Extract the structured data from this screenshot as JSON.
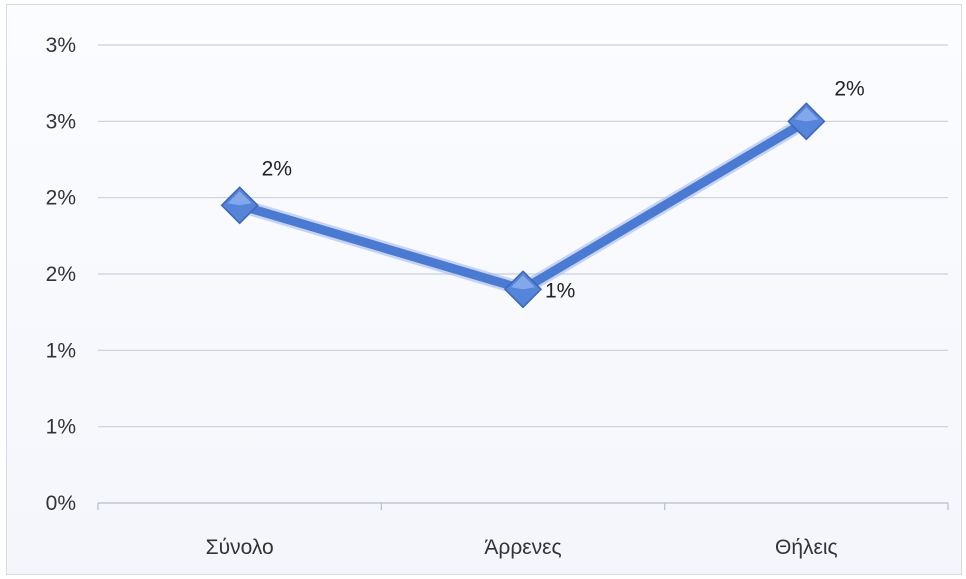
{
  "chart_data": {
    "type": "line",
    "title": "",
    "xlabel": "",
    "ylabel": "",
    "categories": [
      "Σύνολο",
      "Άρρενες",
      "Θήλεις"
    ],
    "series": [
      {
        "values": [
          1.95,
          1.4,
          2.5
        ],
        "data_labels": [
          "2%",
          "1%",
          "2%"
        ],
        "color": "#4a7bd4"
      }
    ],
    "ylim": [
      0,
      3.0
    ],
    "y_tick_labels": [
      "0%",
      "1%",
      "1%",
      "2%",
      "2%",
      "3%",
      "3%"
    ],
    "grid": true,
    "legend": "none"
  }
}
